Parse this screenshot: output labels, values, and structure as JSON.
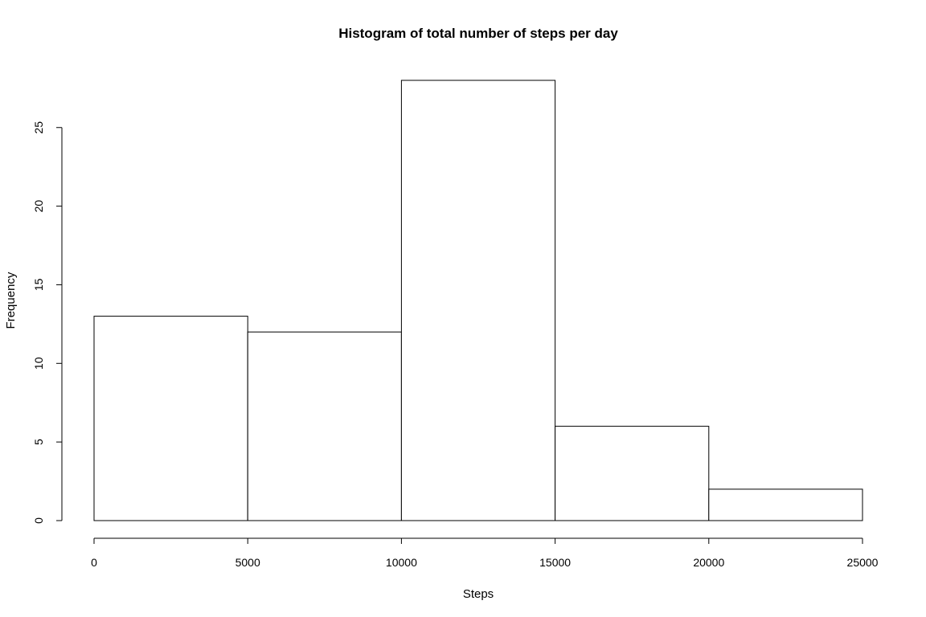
{
  "chart_data": {
    "type": "bar",
    "subtype": "histogram",
    "title": "Histogram of total number of steps per day",
    "xlabel": "Steps",
    "ylabel": "Frequency",
    "bins": [
      {
        "from": 0,
        "to": 5000,
        "count": 13
      },
      {
        "from": 5000,
        "to": 10000,
        "count": 12
      },
      {
        "from": 10000,
        "to": 15000,
        "count": 28
      },
      {
        "from": 15000,
        "to": 20000,
        "count": 6
      },
      {
        "from": 20000,
        "to": 25000,
        "count": 2
      }
    ],
    "xlim": [
      0,
      25000
    ],
    "ylim": [
      0,
      28
    ],
    "x_ticks": [
      0,
      5000,
      10000,
      15000,
      20000,
      25000
    ],
    "x_tick_labels": [
      "0",
      "5000",
      "10000",
      "15000",
      "20000",
      "25000"
    ],
    "y_ticks": [
      0,
      5,
      10,
      15,
      20,
      25
    ],
    "y_tick_labels": [
      "0",
      "5",
      "10",
      "15",
      "20",
      "25"
    ],
    "grid": false,
    "bar_fill": "#ffffff",
    "bar_stroke": "#000000"
  }
}
